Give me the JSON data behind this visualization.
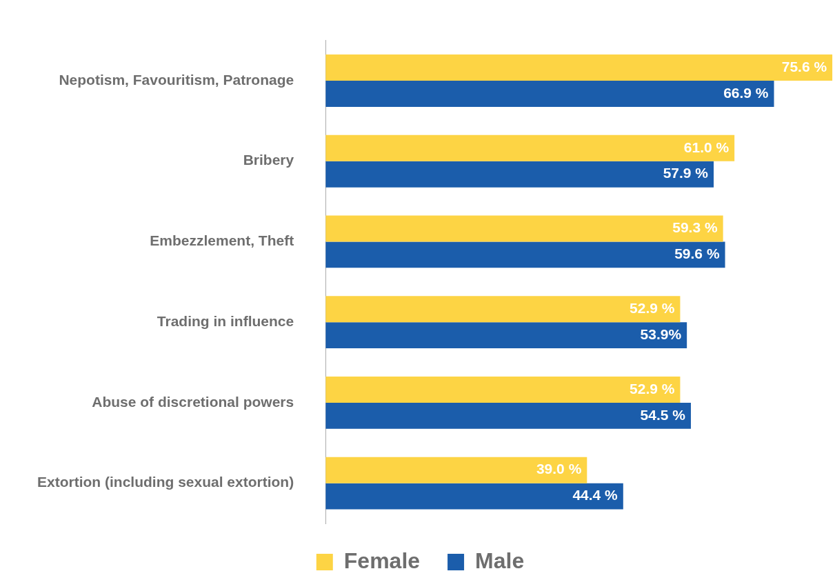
{
  "chart_data": {
    "type": "bar",
    "orientation": "horizontal",
    "categories": [
      "Nepotism, Favouritism, Patronage",
      "Bribery",
      "Embezzlement, Theft",
      "Trading in influence",
      "Abuse of discretional powers",
      "Extortion (including sexual extortion)"
    ],
    "series": [
      {
        "name": "Female",
        "color": "#fdd444",
        "values": [
          75.6,
          61.0,
          59.3,
          52.9,
          52.9,
          39.0
        ],
        "value_labels": [
          "75.6 %",
          "61.0 %",
          "59.3 %",
          "52.9 %",
          "52.9 %",
          "39.0 %"
        ]
      },
      {
        "name": "Male",
        "color": "#1b5dab",
        "values": [
          66.9,
          57.9,
          59.6,
          53.9,
          54.5,
          44.4
        ],
        "value_labels": [
          "66.9 %",
          "57.9 %",
          "59.6 %",
          "53.9%",
          "54.5 %",
          "44.4 %"
        ]
      }
    ],
    "xlim": [
      0,
      76
    ],
    "tick_labels": "y",
    "legend": "bottom"
  }
}
